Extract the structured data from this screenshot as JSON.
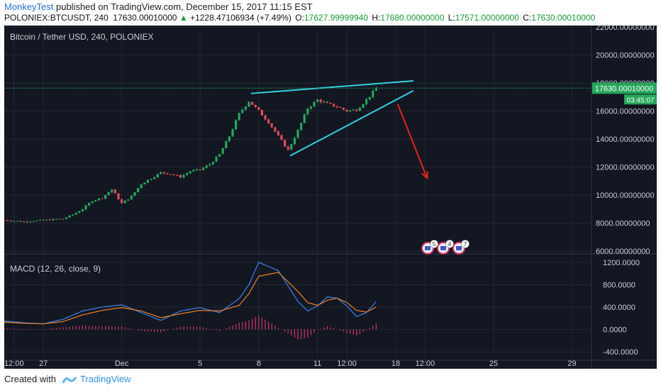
{
  "header": {
    "author": "MonkeyTest",
    "published_text": " published on TradingView.com, December 15, 2017 11:15 EST",
    "symbol": "POLONIEX:BTCUSDT, 240",
    "last_price": "17630.00010000",
    "change_arrow": "▲",
    "change": "+1228.47106934 (+7.49%)",
    "open_label": "O:",
    "open": "17627.99999940",
    "high_label": "H:",
    "high": "17680.00000000",
    "low_label": "L:",
    "low": "17571.00000000",
    "close_label": "C:",
    "close": "17630.00010000"
  },
  "footer": {
    "created_with": "Created with",
    "brand": "TradingView"
  },
  "chart_data": [
    {
      "type": "candlestick",
      "title": "Bitcoin / Tether USD, 240, POLONIEX",
      "ylim": [
        6000,
        22000
      ],
      "y_ticks": [
        "22000.00000000",
        "20000.00000000",
        "18000.00000000",
        "16000.00000000",
        "14000.00000000",
        "12000.00000000",
        "10000.00000000",
        "8000.00000000",
        "6000.00000000"
      ],
      "y_tick_values": [
        22000,
        20000,
        18000,
        16000,
        14000,
        12000,
        10000,
        8000,
        6000
      ],
      "price_tag": "17630.00010000",
      "countdown_tag": "03:45:07",
      "x_ticks": [
        "12:00",
        "27",
        "Dec",
        "5",
        "8",
        "11",
        "12:00",
        "18",
        "12:00",
        "25",
        "29"
      ],
      "x_tick_days": [
        0.5,
        2,
        6,
        10,
        13,
        16,
        17.5,
        20,
        21.5,
        25,
        29
      ],
      "x_domain_days": [
        0,
        30
      ],
      "x_note": "day index 0 = Nov 23 00:00",
      "price_path": [
        [
          0,
          8200
        ],
        [
          1,
          8100
        ],
        [
          2,
          8200
        ],
        [
          3,
          8300
        ],
        [
          3.5,
          8600
        ],
        [
          4,
          9000
        ],
        [
          4.5,
          9600
        ],
        [
          5,
          9800
        ],
        [
          5.5,
          10400
        ],
        [
          6,
          9400
        ],
        [
          6.5,
          9900
        ],
        [
          7,
          10800
        ],
        [
          7.5,
          11200
        ],
        [
          8,
          11600
        ],
        [
          8.5,
          11500
        ],
        [
          9,
          11300
        ],
        [
          9.5,
          11700
        ],
        [
          10,
          11800
        ],
        [
          10.5,
          12200
        ],
        [
          11,
          12900
        ],
        [
          11.5,
          14200
        ],
        [
          12,
          15800
        ],
        [
          12.5,
          16700
        ],
        [
          13,
          16000
        ],
        [
          13.5,
          15200
        ],
        [
          14,
          14200
        ],
        [
          14.5,
          13200
        ],
        [
          15,
          14600
        ],
        [
          15.5,
          16200
        ],
        [
          16,
          16800
        ],
        [
          16.5,
          16500
        ],
        [
          17,
          16300
        ],
        [
          17.5,
          16000
        ],
        [
          18,
          16100
        ],
        [
          18.5,
          16800
        ],
        [
          19,
          17600
        ]
      ],
      "trend_lines": [
        {
          "name": "upper",
          "from": [
            12.6,
            17250
          ],
          "to": [
            20.9,
            18150
          ],
          "color": "#33d1e0"
        },
        {
          "name": "lower",
          "from": [
            14.6,
            12800
          ],
          "to": [
            20.9,
            17450
          ],
          "color": "#33d1e0"
        },
        {
          "name": "projection-arrow",
          "from": [
            20.1,
            16500
          ],
          "to": [
            21.6,
            11200
          ],
          "color": "#e0261b"
        }
      ],
      "event_badges": [
        "5",
        "4",
        "7"
      ]
    },
    {
      "type": "line",
      "title": "MACD (12, 26, close, 9)",
      "ylim": [
        -500,
        1300
      ],
      "y_ticks": [
        "1200.0000",
        "800.0000",
        "400.0000",
        "0.0000",
        "-400.0000"
      ],
      "y_tick_values": [
        1200,
        800,
        400,
        0,
        -400
      ],
      "series": [
        {
          "name": "MACD",
          "color": "#3a7be0",
          "x": [
            0,
            1,
            2,
            3,
            4,
            5,
            6,
            7,
            8,
            9,
            10,
            11,
            12,
            12.5,
            13,
            14,
            15,
            15.5,
            16,
            16.5,
            17,
            17.5,
            18,
            18.5,
            19
          ],
          "values": [
            150,
            120,
            100,
            180,
            330,
            400,
            440,
            300,
            160,
            330,
            390,
            300,
            550,
            800,
            1200,
            1050,
            500,
            330,
            420,
            580,
            560,
            420,
            230,
            300,
            500
          ]
        },
        {
          "name": "Signal",
          "color": "#e07a2a",
          "x": [
            0,
            1,
            2,
            3,
            4,
            5,
            6,
            7,
            8,
            9,
            10,
            11,
            12,
            12.5,
            13,
            14,
            15,
            15.5,
            16,
            16.5,
            17,
            17.5,
            18,
            18.5,
            19
          ],
          "values": [
            130,
            110,
            100,
            140,
            260,
            340,
            390,
            330,
            210,
            280,
            340,
            330,
            430,
            640,
            950,
            1020,
            680,
            480,
            430,
            520,
            560,
            480,
            340,
            310,
            400
          ]
        }
      ],
      "histogram": {
        "color": "#d6336c",
        "x": [
          0,
          1,
          2,
          3,
          4,
          5,
          6,
          7,
          8,
          9,
          10,
          11,
          12,
          12.5,
          13,
          14,
          15,
          15.5,
          16,
          16.5,
          17,
          17.5,
          18,
          18.5,
          19
        ],
        "values": [
          20,
          10,
          0,
          40,
          70,
          60,
          50,
          -30,
          -50,
          50,
          50,
          -30,
          120,
          160,
          250,
          30,
          -180,
          -150,
          -10,
          60,
          0,
          -60,
          -110,
          -10,
          100
        ]
      }
    }
  ]
}
